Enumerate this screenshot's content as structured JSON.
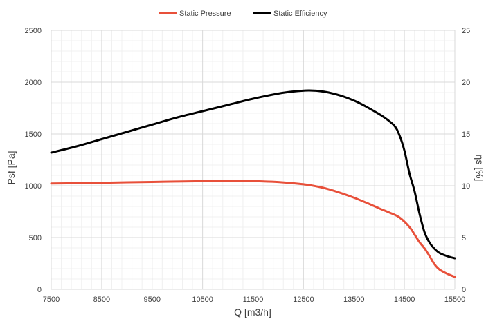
{
  "chart_data": {
    "type": "line",
    "legend_position": "top",
    "grid": true,
    "xlabel": "Q [m3/h]",
    "ylabel_left": "Psf [Pa]",
    "ylabel_right": "ηs [%]",
    "xlim": [
      7500,
      15500
    ],
    "x_ticks": [
      "7500",
      "8500",
      "9500",
      "10500",
      "11500",
      "12500",
      "13500",
      "14500",
      "15500"
    ],
    "ylim_left": [
      0,
      2500
    ],
    "y_ticks_left": [
      "0",
      "500",
      "1000",
      "1500",
      "2000",
      "2500"
    ],
    "ylim_right": [
      0,
      25
    ],
    "y_ticks_right": [
      "0",
      "5",
      "10",
      "15",
      "20",
      "25"
    ],
    "series": [
      {
        "name": "Static Pressure",
        "axis": "left",
        "color": "#e8503a",
        "x": [
          7500,
          8000,
          8500,
          9000,
          9500,
          10000,
          10500,
          11000,
          11500,
          12000,
          12500,
          12800,
          13000,
          13200,
          13500,
          13800,
          14000,
          14200,
          14400,
          14600,
          14700,
          14800,
          14900,
          15000,
          15100,
          15200,
          15350,
          15500
        ],
        "y": [
          1022,
          1024,
          1028,
          1033,
          1037,
          1041,
          1044,
          1045,
          1044,
          1036,
          1014,
          990,
          966,
          936,
          885,
          825,
          782,
          742,
          695,
          602,
          530,
          455,
          395,
          320,
          240,
          190,
          150,
          120
        ]
      },
      {
        "name": "Static Efficiency",
        "axis": "right",
        "color": "#000000",
        "x": [
          7500,
          8000,
          8500,
          9000,
          9500,
          10000,
          10500,
          11000,
          11500,
          12000,
          12300,
          12600,
          12800,
          13000,
          13300,
          13600,
          13900,
          14100,
          14300,
          14400,
          14500,
          14600,
          14700,
          14800,
          14900,
          15000,
          15100,
          15200,
          15350,
          15500
        ],
        "y": [
          13.2,
          13.8,
          14.5,
          15.2,
          15.9,
          16.6,
          17.2,
          17.8,
          18.4,
          18.9,
          19.1,
          19.2,
          19.15,
          19.0,
          18.6,
          18.0,
          17.2,
          16.6,
          15.8,
          14.9,
          13.4,
          11.2,
          9.5,
          7.3,
          5.5,
          4.5,
          3.9,
          3.5,
          3.2,
          3.0
        ]
      }
    ]
  }
}
